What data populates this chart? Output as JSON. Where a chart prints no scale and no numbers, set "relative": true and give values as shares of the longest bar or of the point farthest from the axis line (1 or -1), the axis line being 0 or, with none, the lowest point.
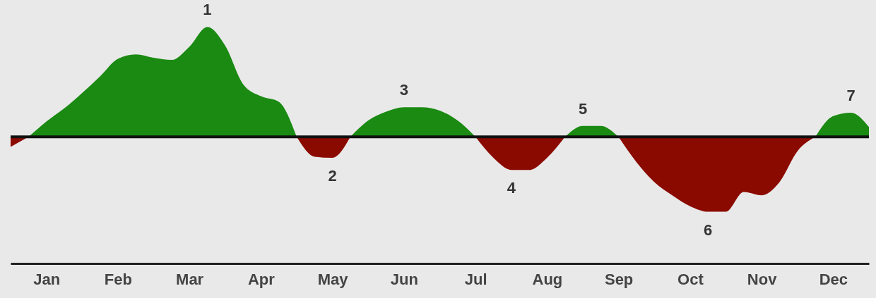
{
  "chart_data": {
    "type": "area",
    "relative": true,
    "categories": [
      null,
      null,
      "Jan",
      null,
      null,
      null,
      "Feb",
      null,
      null,
      null,
      "Mar",
      null,
      null,
      null,
      "Apr",
      null,
      null,
      null,
      "May",
      null,
      null,
      null,
      "Jun",
      null,
      null,
      null,
      "Jul",
      null,
      null,
      null,
      "Aug",
      null,
      null,
      null,
      "Sep",
      null,
      null,
      null,
      "Oct",
      null,
      null,
      null,
      "Nov",
      null,
      null,
      null,
      "Dec",
      null,
      null
    ],
    "series": [
      {
        "color": "#1a8a12",
        "values": [
          null,
          0,
          0.14,
          0.26,
          0.4,
          0.55,
          0.71,
          0.75,
          0.72,
          0.7,
          0.82,
          1,
          0.83,
          0.48,
          0.37,
          0.32,
          0,
          null,
          null,
          0,
          0.15,
          0.23,
          0.27,
          0.27,
          0.24,
          0.15,
          0,
          null,
          null,
          null,
          null,
          0,
          0.1,
          0.1,
          0,
          null,
          null,
          null,
          null,
          null,
          null,
          null,
          null,
          null,
          null,
          0,
          0.19,
          0.22,
          0.09
        ]
      },
      {
        "color": "#8b0a00",
        "values": [
          -0.09,
          0,
          null,
          null,
          null,
          null,
          null,
          null,
          null,
          null,
          null,
          null,
          null,
          null,
          null,
          null,
          0,
          -0.18,
          -0.19,
          0,
          null,
          null,
          null,
          null,
          null,
          null,
          0,
          -0.19,
          -0.3,
          -0.3,
          -0.19,
          0,
          null,
          null,
          0,
          -0.23,
          -0.41,
          -0.53,
          -0.63,
          -0.68,
          -0.68,
          -0.5,
          -0.53,
          -0.41,
          -0.13,
          0,
          null,
          null,
          null
        ]
      }
    ],
    "annotations": [
      "1",
      "2",
      "3",
      "4",
      "5",
      "6",
      "7"
    ],
    "grid": false
  }
}
